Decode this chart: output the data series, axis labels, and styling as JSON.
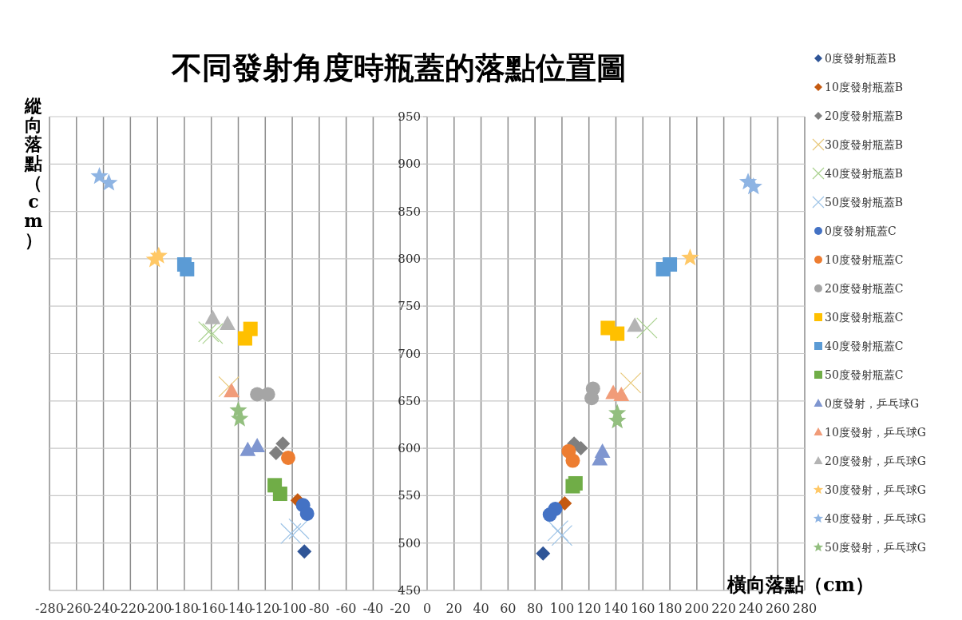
{
  "chart_data": {
    "type": "scatter",
    "title": "不同發射角度時瓶蓋的落點位置圖",
    "xlabel": "橫向落點（cm）",
    "ylabel": "縱向落點（cm）",
    "xlim": [
      -280,
      280
    ],
    "ylim": [
      450,
      950
    ],
    "xticks": [
      -280,
      -260,
      -240,
      -220,
      -200,
      -180,
      -160,
      -140,
      -120,
      -100,
      -80,
      -60,
      -40,
      -20,
      0,
      20,
      40,
      60,
      80,
      100,
      120,
      140,
      160,
      180,
      200,
      220,
      240,
      260,
      280
    ],
    "yticks": [
      450,
      500,
      550,
      600,
      650,
      700,
      750,
      800,
      850,
      900,
      950
    ],
    "grid": true,
    "legend": "right",
    "series": [
      {
        "name": "0度發射瓶蓋B",
        "color": "#2f5597",
        "marker": "diamond",
        "x": [
          -91,
          86
        ],
        "values": [
          491,
          489
        ]
      },
      {
        "name": "10度發射瓶蓋B",
        "color": "#c55a11",
        "marker": "diamond",
        "x": [
          -96,
          102
        ],
        "values": [
          545,
          542
        ]
      },
      {
        "name": "20度發射瓶蓋B",
        "color": "#7f7f7f",
        "marker": "diamond",
        "x": [
          -107,
          -112,
          109,
          114
        ],
        "values": [
          605,
          595,
          605,
          600
        ]
      },
      {
        "name": "30度發射瓶蓋B",
        "color": "#e8c87a",
        "marker": "cross",
        "x": [
          -147,
          151
        ],
        "values": [
          665,
          669
        ]
      },
      {
        "name": "40度發射瓶蓋B",
        "color": "#a9d18e",
        "marker": "cross",
        "x": [
          -162,
          -159,
          163
        ],
        "values": [
          723,
          721,
          727
        ]
      },
      {
        "name": "50度發射瓶蓋B",
        "color": "#9dc3e6",
        "marker": "cross",
        "x": [
          -101,
          -95,
          100,
          97
        ],
        "values": [
          510,
          515,
          508,
          513
        ]
      },
      {
        "name": "0度發射瓶蓋C",
        "color": "#4472c4",
        "marker": "circle",
        "x": [
          -92,
          -89,
          95,
          91
        ],
        "values": [
          540,
          531,
          536,
          530
        ]
      },
      {
        "name": "10度發射瓶蓋C",
        "color": "#ed7d31",
        "marker": "circle",
        "x": [
          -103,
          105,
          108
        ],
        "values": [
          590,
          597,
          587
        ]
      },
      {
        "name": "20度發射瓶蓋C",
        "color": "#a5a5a5",
        "marker": "circle",
        "x": [
          -126,
          -118,
          123,
          122
        ],
        "values": [
          657,
          657,
          663,
          653
        ]
      },
      {
        "name": "30度發射瓶蓋C",
        "color": "#ffc000",
        "marker": "square",
        "x": [
          -135,
          -131,
          134,
          141
        ],
        "values": [
          716,
          726,
          727,
          721
        ]
      },
      {
        "name": "40度發射瓶蓋C",
        "color": "#5b9bd5",
        "marker": "square",
        "x": [
          -180,
          -178,
          175,
          180
        ],
        "values": [
          794,
          789,
          789,
          794
        ]
      },
      {
        "name": "50度發射瓶蓋C",
        "color": "#70ad47",
        "marker": "square",
        "x": [
          -113,
          -109,
          108,
          110
        ],
        "values": [
          561,
          552,
          560,
          563
        ]
      },
      {
        "name": "0度發射，乒乓球G",
        "color": "#7f96d0",
        "marker": "triangle",
        "x": [
          -133,
          -126,
          130,
          128
        ],
        "values": [
          598,
          602,
          596,
          588
        ]
      },
      {
        "name": "10度發射，乒乓球G",
        "color": "#f19c79",
        "marker": "triangle",
        "x": [
          -145,
          138,
          144
        ],
        "values": [
          660,
          658,
          656
        ]
      },
      {
        "name": "20度發射，乒乓球G",
        "color": "#b4b4b4",
        "marker": "triangle",
        "x": [
          -159,
          -148,
          154
        ],
        "values": [
          737,
          731,
          729
        ]
      },
      {
        "name": "30度發射，乒乓球G",
        "color": "#ffc866",
        "marker": "star",
        "x": [
          -202,
          -199,
          195
        ],
        "values": [
          799,
          803,
          801
        ]
      },
      {
        "name": "40度發射，乒乓球G",
        "color": "#8eb4e3",
        "marker": "star",
        "x": [
          -243,
          -236,
          238,
          242
        ],
        "values": [
          887,
          880,
          881,
          876
        ]
      },
      {
        "name": "50度發射，乒乓球G",
        "color": "#93bf7f",
        "marker": "star",
        "x": [
          -140,
          -139,
          141,
          141
        ],
        "values": [
          640,
          631,
          637,
          629
        ]
      }
    ]
  }
}
